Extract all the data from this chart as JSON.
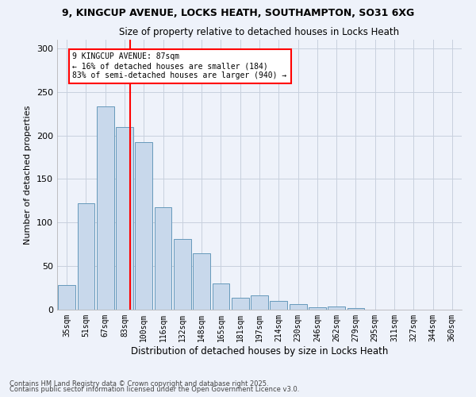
{
  "title1": "9, KINGCUP AVENUE, LOCKS HEATH, SOUTHAMPTON, SO31 6XG",
  "title2": "Size of property relative to detached houses in Locks Heath",
  "xlabel": "Distribution of detached houses by size in Locks Heath",
  "ylabel": "Number of detached properties",
  "categories": [
    "35sqm",
    "51sqm",
    "67sqm",
    "83sqm",
    "100sqm",
    "116sqm",
    "132sqm",
    "148sqm",
    "165sqm",
    "181sqm",
    "197sqm",
    "214sqm",
    "230sqm",
    "246sqm",
    "262sqm",
    "279sqm",
    "295sqm",
    "311sqm",
    "327sqm",
    "344sqm",
    "360sqm"
  ],
  "bar_heights": [
    28,
    122,
    233,
    210,
    192,
    118,
    81,
    65,
    30,
    14,
    16,
    10,
    6,
    3,
    4,
    2,
    0,
    0,
    0,
    0,
    0
  ],
  "bar_color": "#c8d8eb",
  "bar_edge_color": "#6699bb",
  "annotation_text": "9 KINGCUP AVENUE: 87sqm\n← 16% of detached houses are smaller (184)\n83% of semi-detached houses are larger (940) →",
  "annotation_box_color": "white",
  "annotation_box_edge_color": "red",
  "red_line_color": "red",
  "ylim": [
    0,
    310
  ],
  "yticks": [
    0,
    50,
    100,
    150,
    200,
    250,
    300
  ],
  "footer1": "Contains HM Land Registry data © Crown copyright and database right 2025.",
  "footer2": "Contains public sector information licensed under the Open Government Licence v3.0.",
  "background_color": "#eef2fa",
  "grid_color": "#c8d0de"
}
